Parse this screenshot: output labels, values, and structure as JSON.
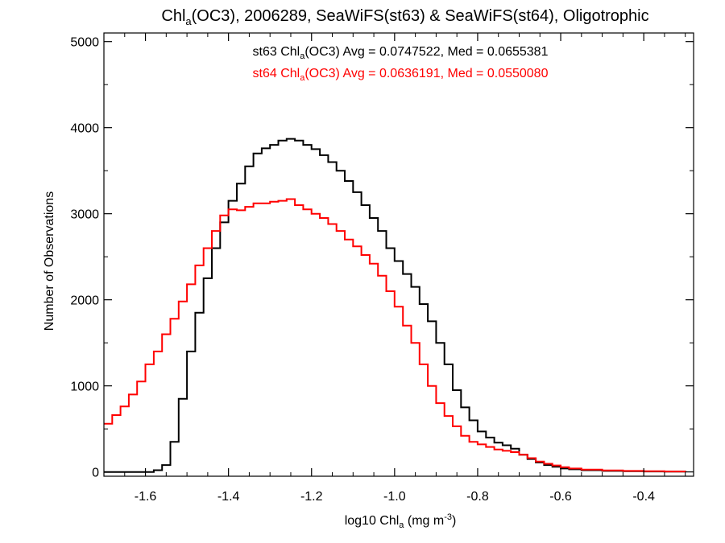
{
  "chart_data": {
    "type": "line",
    "title": {
      "prefix": "Chl",
      "sub": "a",
      "rest": "(OC3), 2006289, SeaWiFS(st63) & SeaWiFS(st64), Oligotrophic"
    },
    "xlabel": {
      "prefix": "log10 Chl",
      "sub": "a",
      "mid": " (mg m",
      "sup": "-3",
      "end": ")"
    },
    "ylabel": "Number of Observations",
    "xlim": [
      -1.7,
      -0.28
    ],
    "ylim": [
      -50,
      5100
    ],
    "xticks": [
      -1.6,
      -1.4,
      -1.2,
      -1.0,
      -0.8,
      -0.6,
      -0.4
    ],
    "xtick_labels": [
      "-1.6",
      "-1.4",
      "-1.2",
      "-1.0",
      "-0.8",
      "-0.6",
      "-0.4"
    ],
    "yticks": [
      0,
      1000,
      2000,
      3000,
      4000,
      5000
    ],
    "ytick_labels": [
      "0",
      "1000",
      "2000",
      "3000",
      "4000",
      "5000"
    ],
    "grid": false,
    "legend_placement": "top-center",
    "annotations": [
      {
        "series": "st63",
        "color": "#000000",
        "pre": "st63 Chl",
        "sub": "a",
        "post": "(OC3) Avg = 0.0747522, Med = 0.0655381"
      },
      {
        "series": "st64",
        "color": "#ff0000",
        "pre": "st64 Chl",
        "sub": "a",
        "post": "(OC3) Avg = 0.0636191, Med = 0.0550080"
      }
    ],
    "series": [
      {
        "name": "st63",
        "color": "#000000",
        "style": "step",
        "x": [
          -1.7,
          -1.6,
          -1.58,
          -1.56,
          -1.54,
          -1.52,
          -1.5,
          -1.48,
          -1.46,
          -1.44,
          -1.42,
          -1.4,
          -1.38,
          -1.36,
          -1.34,
          -1.32,
          -1.3,
          -1.28,
          -1.26,
          -1.24,
          -1.22,
          -1.2,
          -1.18,
          -1.16,
          -1.14,
          -1.12,
          -1.1,
          -1.08,
          -1.06,
          -1.04,
          -1.02,
          -1.0,
          -0.98,
          -0.96,
          -0.94,
          -0.92,
          -0.9,
          -0.88,
          -0.86,
          -0.84,
          -0.82,
          -0.8,
          -0.78,
          -0.76,
          -0.74,
          -0.72,
          -0.7,
          -0.68,
          -0.66,
          -0.64,
          -0.62,
          -0.6,
          -0.58,
          -0.55,
          -0.5,
          -0.45,
          -0.4,
          -0.35,
          -0.3
        ],
        "y": [
          0,
          0,
          20,
          80,
          350,
          850,
          1400,
          1850,
          2250,
          2600,
          2900,
          3150,
          3350,
          3550,
          3700,
          3760,
          3800,
          3850,
          3870,
          3850,
          3800,
          3750,
          3680,
          3600,
          3500,
          3380,
          3250,
          3100,
          2950,
          2800,
          2600,
          2450,
          2300,
          2150,
          1950,
          1750,
          1500,
          1250,
          950,
          750,
          600,
          470,
          400,
          340,
          310,
          270,
          200,
          150,
          110,
          80,
          60,
          40,
          30,
          20,
          12,
          8,
          5,
          3,
          2
        ]
      },
      {
        "name": "st64",
        "color": "#ff0000",
        "style": "step",
        "x": [
          -1.7,
          -1.68,
          -1.66,
          -1.64,
          -1.62,
          -1.6,
          -1.58,
          -1.56,
          -1.54,
          -1.52,
          -1.5,
          -1.48,
          -1.46,
          -1.44,
          -1.42,
          -1.4,
          -1.38,
          -1.36,
          -1.34,
          -1.32,
          -1.3,
          -1.28,
          -1.26,
          -1.24,
          -1.22,
          -1.2,
          -1.18,
          -1.16,
          -1.14,
          -1.12,
          -1.1,
          -1.08,
          -1.06,
          -1.04,
          -1.02,
          -1.0,
          -0.98,
          -0.96,
          -0.94,
          -0.92,
          -0.9,
          -0.88,
          -0.86,
          -0.84,
          -0.82,
          -0.8,
          -0.78,
          -0.76,
          -0.74,
          -0.72,
          -0.7,
          -0.68,
          -0.66,
          -0.64,
          -0.62,
          -0.6,
          -0.58,
          -0.55,
          -0.5,
          -0.45,
          -0.4,
          -0.35,
          -0.3
        ],
        "y": [
          560,
          660,
          760,
          900,
          1050,
          1250,
          1400,
          1600,
          1780,
          1980,
          2180,
          2400,
          2600,
          2800,
          2980,
          3050,
          3040,
          3080,
          3120,
          3120,
          3140,
          3150,
          3170,
          3100,
          3050,
          3000,
          2950,
          2880,
          2800,
          2700,
          2620,
          2520,
          2420,
          2280,
          2100,
          1920,
          1700,
          1500,
          1250,
          1000,
          800,
          650,
          530,
          420,
          350,
          320,
          290,
          260,
          245,
          230,
          200,
          160,
          120,
          95,
          75,
          55,
          40,
          28,
          18,
          12,
          8,
          5,
          3
        ]
      }
    ]
  }
}
